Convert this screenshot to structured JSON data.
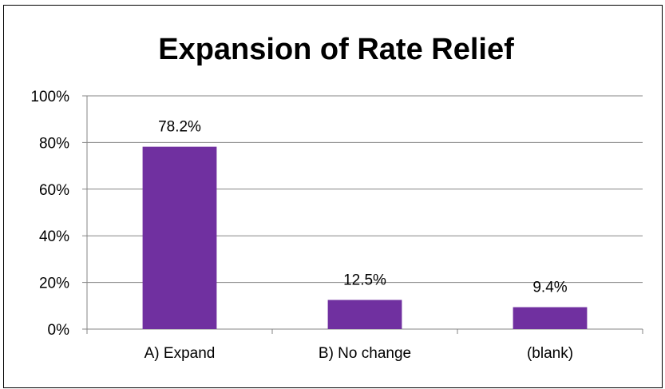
{
  "chart_data": {
    "type": "bar",
    "title": "Expansion of Rate Relief",
    "categories": [
      "A) Expand",
      "B) No change",
      "(blank)"
    ],
    "values": [
      78.2,
      12.5,
      9.4
    ],
    "data_labels": [
      "78.2%",
      "12.5%",
      "9.4%"
    ],
    "ylim": [
      0,
      100
    ],
    "yticks": [
      0,
      20,
      40,
      60,
      80,
      100
    ],
    "ytick_labels": [
      "0%",
      "20%",
      "40%",
      "60%",
      "80%",
      "100%"
    ],
    "grid": true,
    "legend": "none",
    "colors": {
      "bar": "#7030A0",
      "grid": "#868686",
      "axis": "#868686",
      "text": "#000000"
    }
  }
}
